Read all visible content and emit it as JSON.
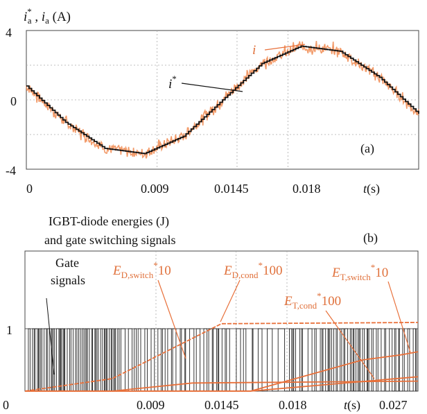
{
  "chart_data": [
    {
      "type": "line",
      "panel_label": "(a)",
      "ylabel": {
        "main": "i",
        "sup": "*",
        "sub": "a",
        "sep": " , ",
        "main2": "i",
        "sub2": "a",
        "unit": " (A)"
      },
      "yticks": [
        "4",
        "0",
        "-4"
      ],
      "ylim": [
        -4,
        4
      ],
      "xticks": [
        "0",
        "0.009",
        "0.0145",
        "0.018"
      ],
      "xlabel": {
        "var": "t",
        "unit": "(s)"
      },
      "xlim": [
        0,
        0.027
      ],
      "grid": "dashed",
      "series": [
        {
          "name": "i*",
          "label": "i",
          "label_sup": "*",
          "color": "#111111",
          "x": [
            0,
            0.0027,
            0.0054,
            0.0081,
            0.0108,
            0.0135,
            0.0162,
            0.0189,
            0.0216,
            0.0243,
            0.027
          ],
          "values": [
            0.8,
            -1.3,
            -2.8,
            -3.1,
            -2.1,
            0.0,
            2.1,
            3.1,
            2.8,
            1.3,
            -0.8
          ]
        },
        {
          "name": "i",
          "label": "i",
          "color": "#f08a50",
          "x": [
            0,
            0.0027,
            0.0054,
            0.0081,
            0.0108,
            0.0135,
            0.0162,
            0.0189,
            0.0216,
            0.0243,
            0.027
          ],
          "values": [
            0.8,
            -1.3,
            -2.8,
            -3.1,
            -2.1,
            0.0,
            2.1,
            3.1,
            2.8,
            1.3,
            -0.8
          ]
        }
      ]
    },
    {
      "type": "line",
      "panel_label": "(b)",
      "title_line1": "IGBT-diode energies  (J)",
      "title_line2": " and gate switching signals",
      "yticks": [
        "1"
      ],
      "xticks": [
        "0",
        "0.009",
        "0.0145",
        "0.018",
        "0.027"
      ],
      "xlabel": {
        "var": "t",
        "unit": "(s)"
      },
      "xlim": [
        0,
        0.027
      ],
      "gate_label_line1": "Gate",
      "gate_label_line2": "signals",
      "series": [
        {
          "name": "E_D,switch*10",
          "label": "E",
          "sub": "D,switch",
          "sup": "*",
          "mult": "10",
          "color": "#e8703a",
          "x": [
            0,
            0.006,
            0.0115,
            0.027
          ],
          "values": [
            0,
            0,
            0.13,
            0.16
          ]
        },
        {
          "name": "E_D,cond*100",
          "label": "E",
          "sub": "D,cond",
          "sup": "*",
          "mult": "100",
          "color": "#e8703a",
          "x": [
            0,
            0.006,
            0.0135,
            0.027
          ],
          "values": [
            0,
            0.2,
            1.08,
            1.1
          ]
        },
        {
          "name": "E_T,switch*10",
          "label": "E",
          "sub": "T,switch",
          "sup": "*",
          "mult": "10",
          "color": "#e8703a",
          "x": [
            0,
            0.0155,
            0.0232,
            0.0258,
            0.027
          ],
          "values": [
            0,
            0,
            0.5,
            0.58,
            0.63
          ]
        },
        {
          "name": "E_T,cond*100",
          "label": "E",
          "sub": "T,cond",
          "sup": "*",
          "mult": "100",
          "color": "#e8703a",
          "x": [
            0,
            0.0155,
            0.027
          ],
          "values": [
            0,
            0,
            0.23
          ]
        }
      ]
    }
  ]
}
